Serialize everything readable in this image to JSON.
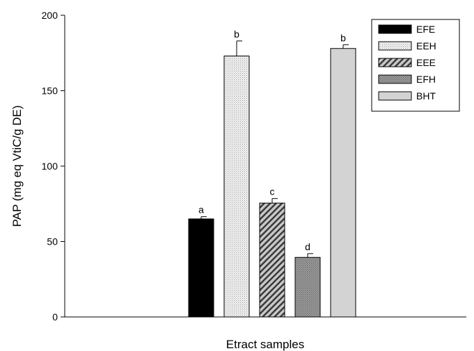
{
  "chart_data": {
    "type": "bar",
    "title": "",
    "xlabel": "Etract samples",
    "ylabel": "PAP (mg eq VtiC/g DE)",
    "ylim": [
      0,
      200
    ],
    "yticks": [
      0,
      50,
      100,
      150,
      200
    ],
    "grid": false,
    "legend_position": "top-right",
    "series": [
      {
        "name": "EFE",
        "value": 65,
        "error": 1.5,
        "letter": "a",
        "pattern": "solid-black"
      },
      {
        "name": "EEH",
        "value": 173,
        "error": 10,
        "letter": "b",
        "pattern": "fine-dots"
      },
      {
        "name": "EEE",
        "value": 75.5,
        "error": 3,
        "letter": "c",
        "pattern": "diagonal-hatch"
      },
      {
        "name": "EFH",
        "value": 39.5,
        "error": 2.5,
        "letter": "d",
        "pattern": "crosshatch-gray"
      },
      {
        "name": "BHT",
        "value": 178,
        "error": 2.5,
        "letter": "b",
        "pattern": "light-gray"
      }
    ]
  }
}
